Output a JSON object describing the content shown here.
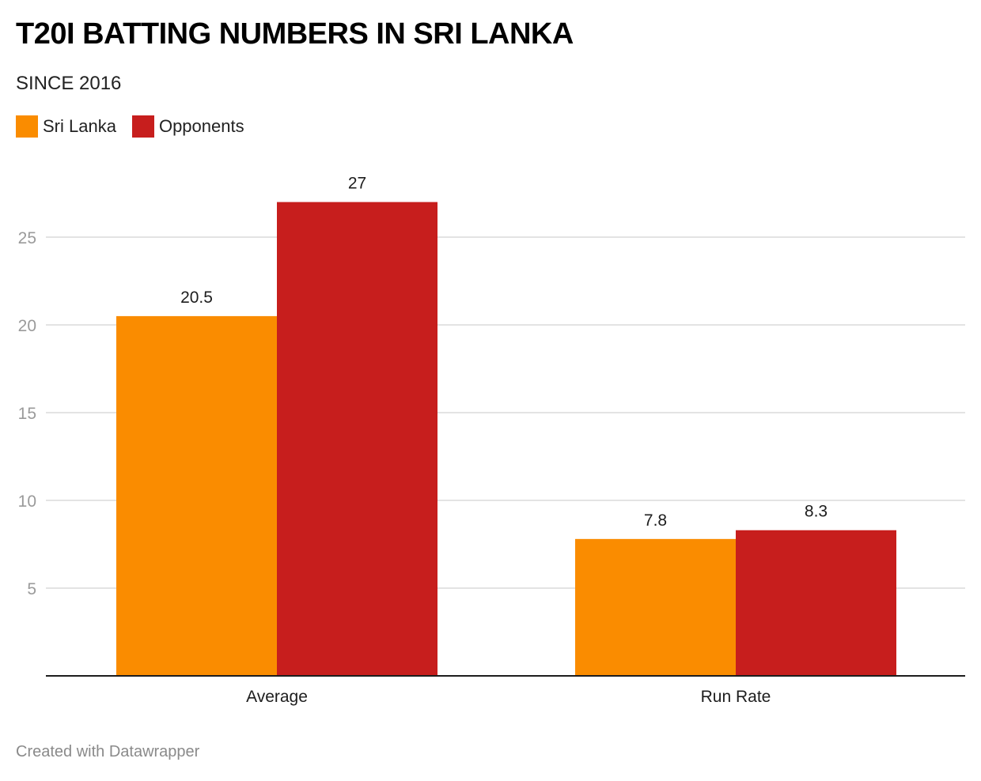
{
  "chart_data": {
    "type": "bar",
    "title": "T20I BATTING NUMBERS IN SRI LANKA",
    "subtitle": "SINCE 2016",
    "categories": [
      "Average",
      "Run Rate"
    ],
    "series": [
      {
        "name": "Sri Lanka",
        "color": "#fa8c00",
        "values": [
          20.5,
          7.8
        ],
        "labels": [
          "20.5",
          "7.8"
        ]
      },
      {
        "name": "Opponents",
        "color": "#c71e1d",
        "values": [
          27,
          8.3
        ],
        "labels": [
          "27",
          "8.3"
        ]
      }
    ],
    "yticks": [
      5,
      10,
      15,
      20,
      25
    ],
    "ytick_labels": [
      "5",
      "10",
      "15",
      "20",
      "25"
    ],
    "ylim": [
      0,
      27
    ],
    "grid": true,
    "legend": "top-left",
    "xlabel": "",
    "ylabel": ""
  },
  "footer": "Created with Datawrapper"
}
